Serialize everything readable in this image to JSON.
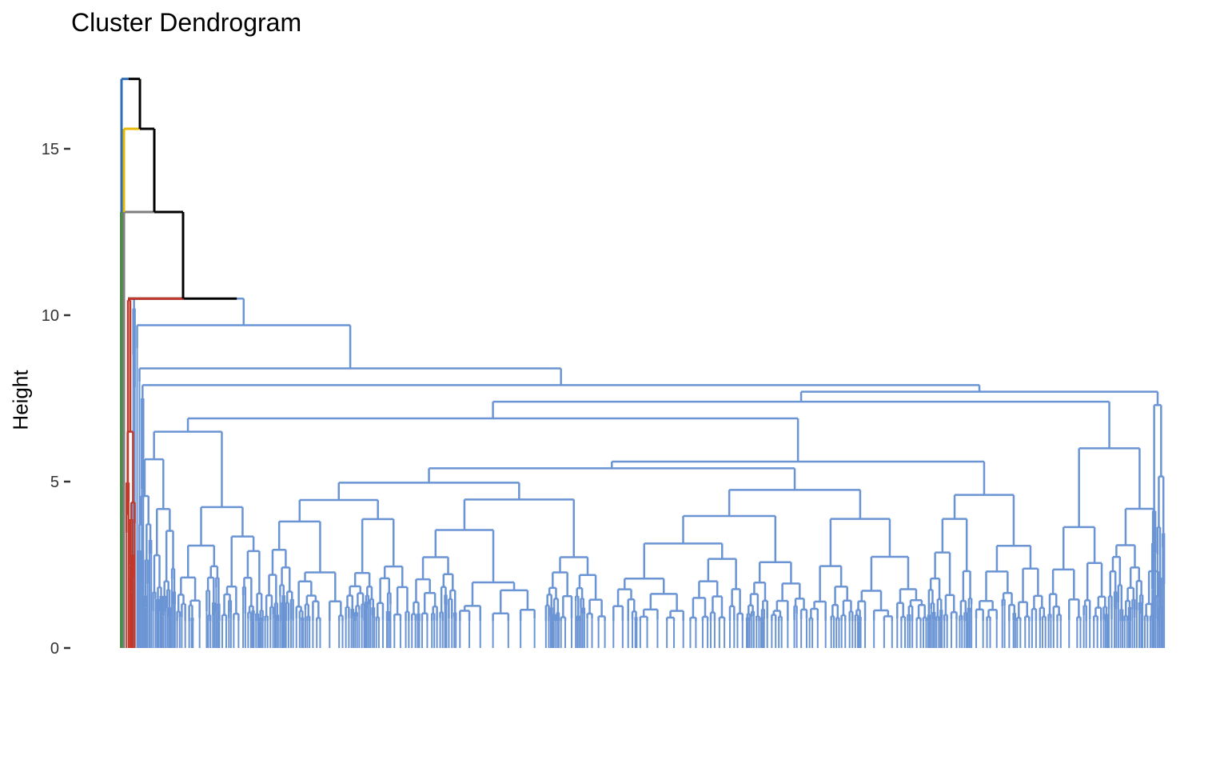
{
  "chart_data": {
    "type": "dendrogram",
    "title": "Cluster Dendrogram",
    "xlabel": "",
    "ylabel": "Height",
    "ylim": [
      0,
      17.1
    ],
    "y_ticks": [
      "0",
      "5",
      "10",
      "15"
    ],
    "grid": false,
    "legend": "none",
    "colors": {
      "top_links": "#000000",
      "grey_cluster": "#7f7f7f",
      "yellow_cluster": "#e7b800",
      "blue_cluster": "#2e6db5",
      "red_cluster": "#c0392b",
      "green_cluster": "#4c8c4a",
      "main_cluster": "#6a94d4"
    },
    "merge_heights": {
      "root": 17.1,
      "black_2": 15.6,
      "black_3": 13.1,
      "black_4": 10.5,
      "main_cluster_top": 10.5,
      "main_level_2": 9.7,
      "main_level_3": 8.4,
      "main_level_4": 7.9,
      "main_level_5": 7.7,
      "right_group": 7.4,
      "mid_group": 6.9,
      "left_subgroup": 6.5,
      "center_group": 5.4
    }
  }
}
